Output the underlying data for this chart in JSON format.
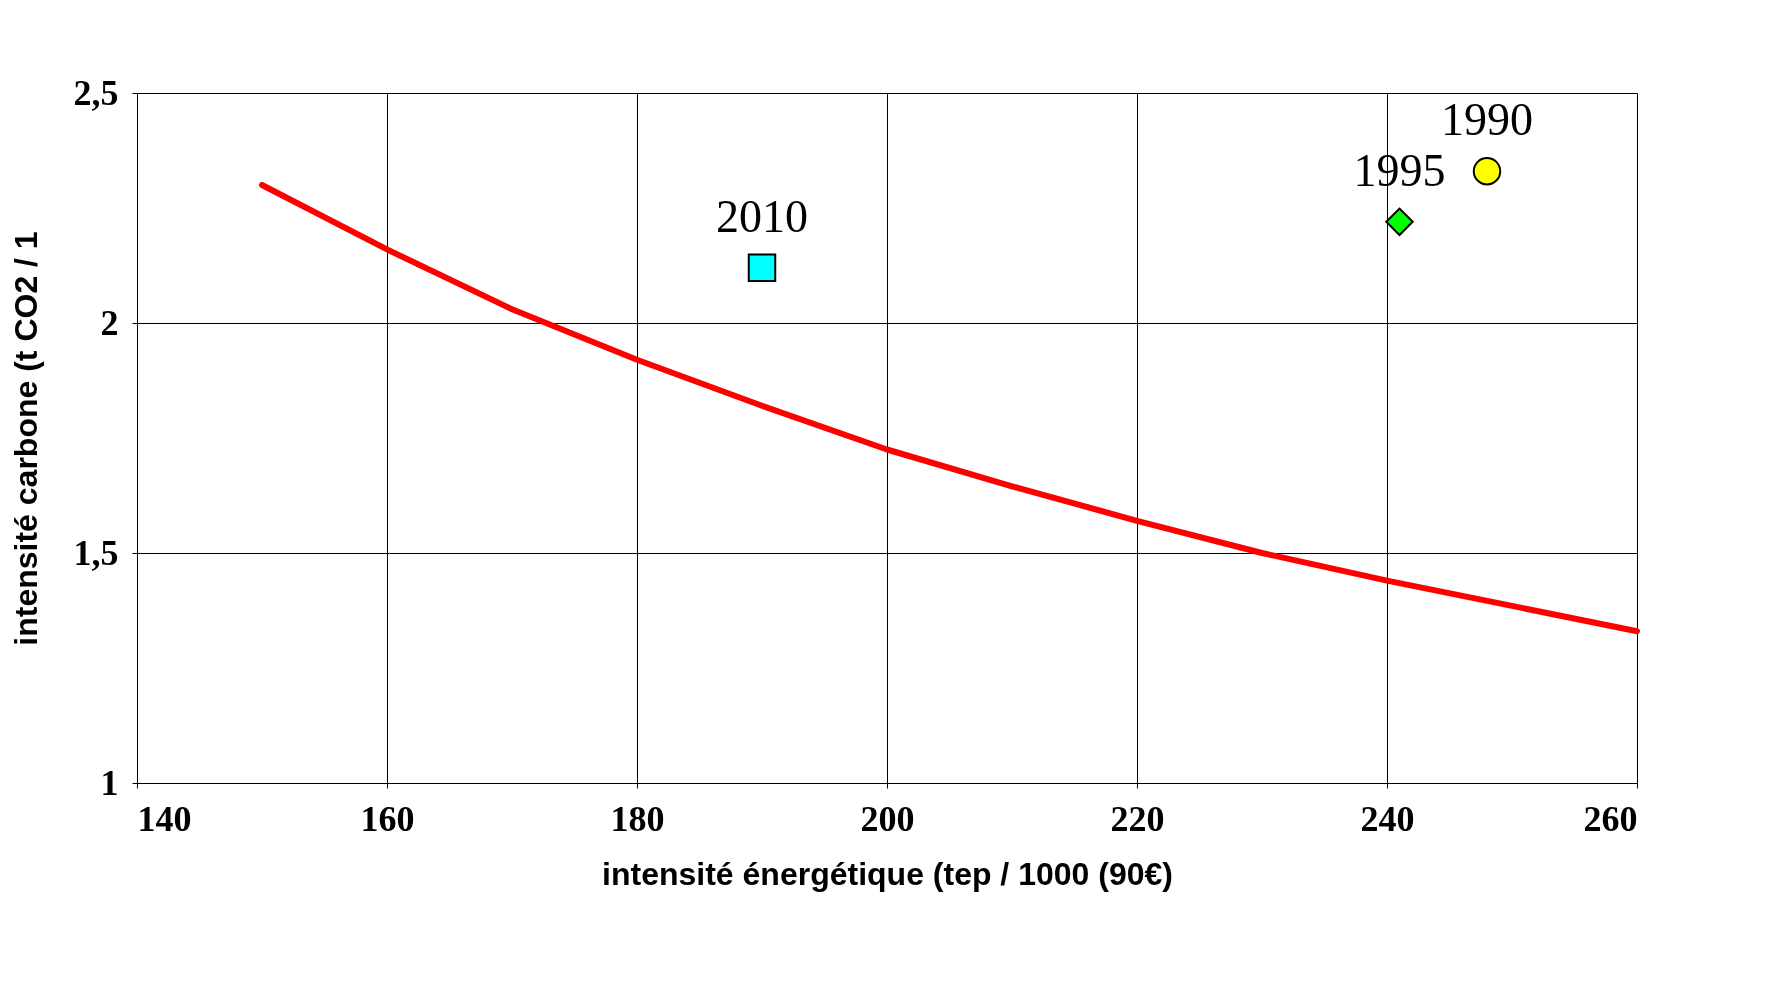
{
  "chart_data": {
    "type": "scatter",
    "xlabel": "intensité énergétique (tep / 1000    (90€)",
    "ylabel": "intensité carbone (t CO2 / 1",
    "xlim": [
      140,
      260
    ],
    "ylim": [
      1,
      2.5
    ],
    "xticks": [
      140,
      160,
      180,
      200,
      220,
      240,
      260
    ],
    "yticks": [
      1,
      {
        "value": 1.5,
        "label": "1,5"
      },
      2,
      {
        "value": 2.5,
        "label": "2,5"
      }
    ],
    "grid": true,
    "series": [
      {
        "type": "line",
        "color": "#ff0000",
        "marker": "none",
        "line_style": "solid",
        "x": [
          150,
          160,
          170,
          180,
          190,
          200,
          210,
          220,
          230,
          240,
          250,
          260
        ],
        "values": [
          2.3,
          2.16,
          2.03,
          1.92,
          1.82,
          1.725,
          1.645,
          1.57,
          1.5,
          1.44,
          1.385,
          1.33
        ]
      },
      {
        "color": "#00ffff",
        "marker": "square",
        "x": [
          190
        ],
        "values": [
          2.12
        ]
      },
      {
        "color": "#00ff00",
        "marker": "diamond",
        "x": [
          241
        ],
        "values": [
          2.22
        ]
      },
      {
        "color": "#ffff00",
        "marker": "circle",
        "x": [
          248
        ],
        "values": [
          2.33
        ]
      }
    ],
    "annotations": [
      {
        "text": "2010",
        "x": 190,
        "y": 2.12
      },
      {
        "text": "1995",
        "x": 241,
        "y": 2.22
      },
      {
        "text": "1990",
        "x": 248,
        "y": 2.33
      }
    ]
  }
}
